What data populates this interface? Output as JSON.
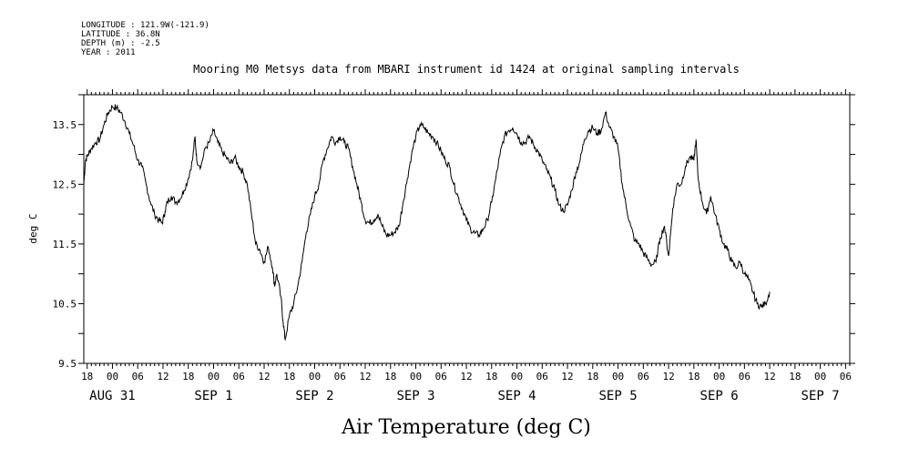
{
  "metadata": {
    "longitude": "LONGITUDE : 121.9W(-121.9)",
    "latitude": "LATITUDE : 36.8N",
    "depth": "DEPTH (m) : -2.5",
    "year": "YEAR : 2011"
  },
  "colors": {
    "line": "#000000",
    "background": "#ffffff"
  },
  "chart_data": {
    "type": "line",
    "title": "Mooring M0 Metsys data from MBARI instrument id 1424 at original sampling intervals",
    "xlabel": "Air Temperature (deg C)",
    "ylabel": "deg C",
    "ylim": [
      9.5,
      14.0
    ],
    "xlim": [
      -6.8,
      175
    ],
    "x_unit": "hours since 2011-08-31 00:00",
    "yticks": [
      9.5,
      10.5,
      11.5,
      12.5,
      13.5
    ],
    "ytick_labels": [
      "9.5",
      "10.5",
      "11.5",
      "12.5",
      "13.5"
    ],
    "hour_ticks": [
      {
        "x": -6,
        "label": "18"
      },
      {
        "x": 0,
        "label": "00"
      },
      {
        "x": 6,
        "label": "06"
      },
      {
        "x": 12,
        "label": "12"
      },
      {
        "x": 18,
        "label": "18"
      },
      {
        "x": 24,
        "label": "00"
      },
      {
        "x": 30,
        "label": "06"
      },
      {
        "x": 36,
        "label": "12"
      },
      {
        "x": 42,
        "label": "18"
      },
      {
        "x": 48,
        "label": "00"
      },
      {
        "x": 54,
        "label": "06"
      },
      {
        "x": 60,
        "label": "12"
      },
      {
        "x": 66,
        "label": "18"
      },
      {
        "x": 72,
        "label": "00"
      },
      {
        "x": 78,
        "label": "06"
      },
      {
        "x": 84,
        "label": "12"
      },
      {
        "x": 90,
        "label": "18"
      },
      {
        "x": 96,
        "label": "00"
      },
      {
        "x": 102,
        "label": "06"
      },
      {
        "x": 108,
        "label": "12"
      },
      {
        "x": 114,
        "label": "18"
      },
      {
        "x": 120,
        "label": "00"
      },
      {
        "x": 126,
        "label": "06"
      },
      {
        "x": 132,
        "label": "12"
      },
      {
        "x": 138,
        "label": "18"
      },
      {
        "x": 144,
        "label": "00"
      },
      {
        "x": 150,
        "label": "06"
      },
      {
        "x": 156,
        "label": "12"
      },
      {
        "x": 162,
        "label": "18"
      },
      {
        "x": 168,
        "label": "00"
      },
      {
        "x": 174,
        "label": "06"
      }
    ],
    "day_labels": [
      {
        "x": 0,
        "label": "AUG 31"
      },
      {
        "x": 24,
        "label": "SEP  1"
      },
      {
        "x": 48,
        "label": "SEP  2"
      },
      {
        "x": 72,
        "label": "SEP  3"
      },
      {
        "x": 96,
        "label": "SEP  4"
      },
      {
        "x": 120,
        "label": "SEP  5"
      },
      {
        "x": 144,
        "label": "SEP  6"
      },
      {
        "x": 168,
        "label": "SEP  7"
      }
    ],
    "grid": false,
    "series": [
      {
        "values": [
          [
            -6.8,
            12.5
          ],
          [
            -6.4,
            12.9
          ],
          [
            -5.8,
            13.0
          ],
          [
            -5.0,
            13.1
          ],
          [
            -4.0,
            13.2
          ],
          [
            -3.0,
            13.25
          ],
          [
            -2.0,
            13.5
          ],
          [
            -1.0,
            13.7
          ],
          [
            0.0,
            13.8
          ],
          [
            1.0,
            13.78
          ],
          [
            2.0,
            13.7
          ],
          [
            3.0,
            13.55
          ],
          [
            4.0,
            13.35
          ],
          [
            5.0,
            13.15
          ],
          [
            6.0,
            12.9
          ],
          [
            7.0,
            12.8
          ],
          [
            8.0,
            12.5
          ],
          [
            9.0,
            12.2
          ],
          [
            10.0,
            12.0
          ],
          [
            11.0,
            11.9
          ],
          [
            11.8,
            11.85
          ],
          [
            12.5,
            12.05
          ],
          [
            13.0,
            12.2
          ],
          [
            14.0,
            12.3
          ],
          [
            15.0,
            12.2
          ],
          [
            16.0,
            12.25
          ],
          [
            17.0,
            12.4
          ],
          [
            18.0,
            12.6
          ],
          [
            19.0,
            12.9
          ],
          [
            19.6,
            13.3
          ],
          [
            20.0,
            12.9
          ],
          [
            21.0,
            12.8
          ],
          [
            22.0,
            13.1
          ],
          [
            23.0,
            13.2
          ],
          [
            24.0,
            13.4
          ],
          [
            25.0,
            13.2
          ],
          [
            26.0,
            13.05
          ],
          [
            27.0,
            12.95
          ],
          [
            28.0,
            12.85
          ],
          [
            29.0,
            12.95
          ],
          [
            30.0,
            12.8
          ],
          [
            31.0,
            12.7
          ],
          [
            32.0,
            12.5
          ],
          [
            33.0,
            12.0
          ],
          [
            34.0,
            11.5
          ],
          [
            35.0,
            11.4
          ],
          [
            36.0,
            11.2
          ],
          [
            37.0,
            11.45
          ],
          [
            38.0,
            11.1
          ],
          [
            38.5,
            10.8
          ],
          [
            39.0,
            11.0
          ],
          [
            40.0,
            10.6
          ],
          [
            40.5,
            10.2
          ],
          [
            41.0,
            9.9
          ],
          [
            42.0,
            10.3
          ],
          [
            43.0,
            10.5
          ],
          [
            44.0,
            10.8
          ],
          [
            45.0,
            11.2
          ],
          [
            46.0,
            11.7
          ],
          [
            47.0,
            12.0
          ],
          [
            48.0,
            12.3
          ],
          [
            49.0,
            12.5
          ],
          [
            50.0,
            12.9
          ],
          [
            51.0,
            13.1
          ],
          [
            52.0,
            13.3
          ],
          [
            53.0,
            13.2
          ],
          [
            54.0,
            13.3
          ],
          [
            55.0,
            13.2
          ],
          [
            56.0,
            13.1
          ],
          [
            57.0,
            12.8
          ],
          [
            58.0,
            12.5
          ],
          [
            59.0,
            12.2
          ],
          [
            60.0,
            11.9
          ],
          [
            61.0,
            11.85
          ],
          [
            62.0,
            11.9
          ],
          [
            63.0,
            12.0
          ],
          [
            64.0,
            11.8
          ],
          [
            65.0,
            11.65
          ],
          [
            66.0,
            11.65
          ],
          [
            67.0,
            11.7
          ],
          [
            68.0,
            11.8
          ],
          [
            69.0,
            12.2
          ],
          [
            70.0,
            12.6
          ],
          [
            71.0,
            13.0
          ],
          [
            72.0,
            13.3
          ],
          [
            73.0,
            13.5
          ],
          [
            74.0,
            13.45
          ],
          [
            75.0,
            13.35
          ],
          [
            76.0,
            13.3
          ],
          [
            77.0,
            13.2
          ],
          [
            78.0,
            13.05
          ],
          [
            79.0,
            12.9
          ],
          [
            80.0,
            12.8
          ],
          [
            81.0,
            12.5
          ],
          [
            82.0,
            12.3
          ],
          [
            83.0,
            12.1
          ],
          [
            84.0,
            11.9
          ],
          [
            85.0,
            11.75
          ],
          [
            86.0,
            11.68
          ],
          [
            87.0,
            11.65
          ],
          [
            88.0,
            11.75
          ],
          [
            89.0,
            11.9
          ],
          [
            90.0,
            12.2
          ],
          [
            91.0,
            12.6
          ],
          [
            92.0,
            13.0
          ],
          [
            93.0,
            13.3
          ],
          [
            94.0,
            13.4
          ],
          [
            95.0,
            13.45
          ],
          [
            96.0,
            13.35
          ],
          [
            97.0,
            13.2
          ],
          [
            98.0,
            13.2
          ],
          [
            99.0,
            13.3
          ],
          [
            100.0,
            13.15
          ],
          [
            101.0,
            13.05
          ],
          [
            102.0,
            12.9
          ],
          [
            103.0,
            12.75
          ],
          [
            104.0,
            12.6
          ],
          [
            105.0,
            12.4
          ],
          [
            106.0,
            12.15
          ],
          [
            107.0,
            12.05
          ],
          [
            108.0,
            12.15
          ],
          [
            109.0,
            12.4
          ],
          [
            110.0,
            12.7
          ],
          [
            111.0,
            12.9
          ],
          [
            112.0,
            13.25
          ],
          [
            113.0,
            13.4
          ],
          [
            114.0,
            13.45
          ],
          [
            115.0,
            13.35
          ],
          [
            116.0,
            13.4
          ],
          [
            117.0,
            13.7
          ],
          [
            118.0,
            13.45
          ],
          [
            119.0,
            13.3
          ],
          [
            120.0,
            13.1
          ],
          [
            121.0,
            12.5
          ],
          [
            122.0,
            12.1
          ],
          [
            123.0,
            11.8
          ],
          [
            124.0,
            11.55
          ],
          [
            125.0,
            11.5
          ],
          [
            126.0,
            11.35
          ],
          [
            127.0,
            11.25
          ],
          [
            128.0,
            11.15
          ],
          [
            129.0,
            11.2
          ],
          [
            130.0,
            11.6
          ],
          [
            131.0,
            11.8
          ],
          [
            132.0,
            11.3
          ],
          [
            133.0,
            12.1
          ],
          [
            134.0,
            12.5
          ],
          [
            135.0,
            12.5
          ],
          [
            136.0,
            12.8
          ],
          [
            137.0,
            12.95
          ],
          [
            138.0,
            12.9
          ],
          [
            138.5,
            13.25
          ],
          [
            139.0,
            12.6
          ],
          [
            140.0,
            12.2
          ],
          [
            141.0,
            12.0
          ],
          [
            142.0,
            12.3
          ],
          [
            143.0,
            12.0
          ],
          [
            144.0,
            11.75
          ],
          [
            145.0,
            11.5
          ],
          [
            146.0,
            11.4
          ],
          [
            147.0,
            11.2
          ],
          [
            148.0,
            11.1
          ],
          [
            149.0,
            11.2
          ],
          [
            150.0,
            11.0
          ],
          [
            151.0,
            10.9
          ],
          [
            152.0,
            10.7
          ],
          [
            153.0,
            10.5
          ],
          [
            154.0,
            10.45
          ],
          [
            155.0,
            10.5
          ],
          [
            156.0,
            10.7
          ]
        ]
      }
    ]
  }
}
